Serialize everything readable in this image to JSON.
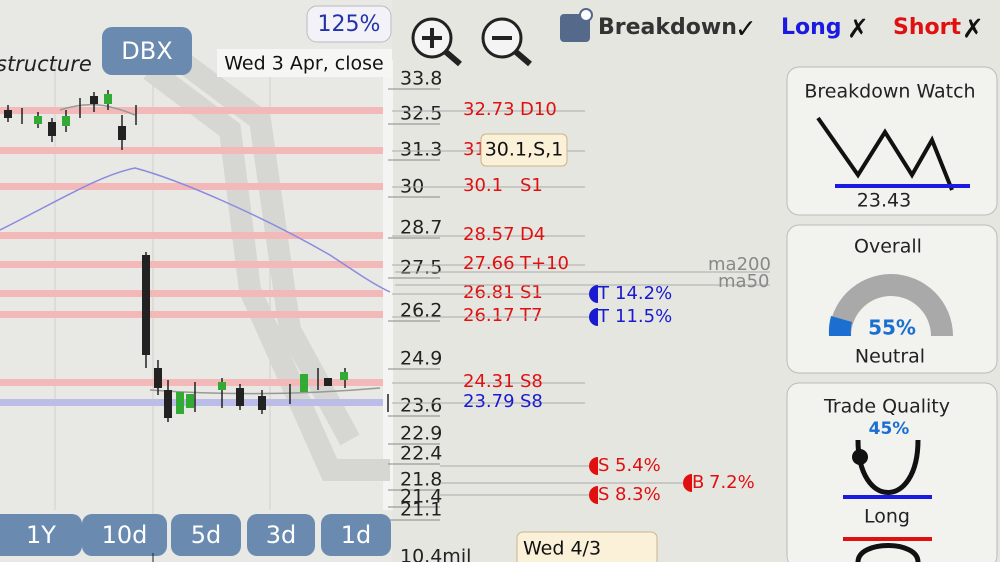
{
  "header": {
    "zoom": "125%",
    "symbol": "DBX",
    "date": "Wed 3 Apr, close",
    "chart_title": "structure",
    "toggles": [
      {
        "label": "Breakdown",
        "mark": "✓"
      },
      {
        "label": "Long",
        "mark": "✗"
      },
      {
        "label": "Short",
        "mark": "✗"
      }
    ]
  },
  "price_axis": [
    "33.8",
    "32.5",
    "31.3",
    "30",
    "28.7",
    "27.5",
    "26.2",
    "24.9",
    "23.6",
    "22.9",
    "22.4",
    "21.8",
    "21.4",
    "21.1"
  ],
  "levels": [
    {
      "price": "32.73",
      "tag": "D10"
    },
    {
      "price": "31",
      "tag": ""
    },
    {
      "price": "30.1",
      "tag": "S1"
    },
    {
      "price": "28.57",
      "tag": "D4"
    },
    {
      "price": "27.66",
      "tag": "T+10"
    },
    {
      "price": "26.81",
      "tag": "S1"
    },
    {
      "price": "26.17",
      "tag": "T7"
    },
    {
      "price": "24.31",
      "tag": "S8"
    },
    {
      "price": "23.79",
      "tag": "S8"
    }
  ],
  "tooltip": "30.1,S,1",
  "moving_averages": [
    "ma200",
    "ma50"
  ],
  "signals": [
    {
      "icon": "T",
      "text": "14.2%"
    },
    {
      "icon": "T",
      "text": "11.5%"
    },
    {
      "icon": "S",
      "text": "5.4%"
    },
    {
      "icon": "B",
      "text": "7.2%"
    },
    {
      "icon": "S",
      "text": "8.3%"
    }
  ],
  "panels": {
    "breakdown": {
      "title": "Breakdown Watch",
      "value": "23.43"
    },
    "overall": {
      "title": "Overall",
      "value": "55%",
      "status": "Neutral"
    },
    "quality": {
      "title": "Trade Quality",
      "value": "45%",
      "status": "Long"
    }
  },
  "periods": [
    "1Y",
    "10d",
    "5d",
    "3d",
    "1d"
  ],
  "footer": {
    "date": "Wed 4/3",
    "volume": "10.4mil"
  }
}
